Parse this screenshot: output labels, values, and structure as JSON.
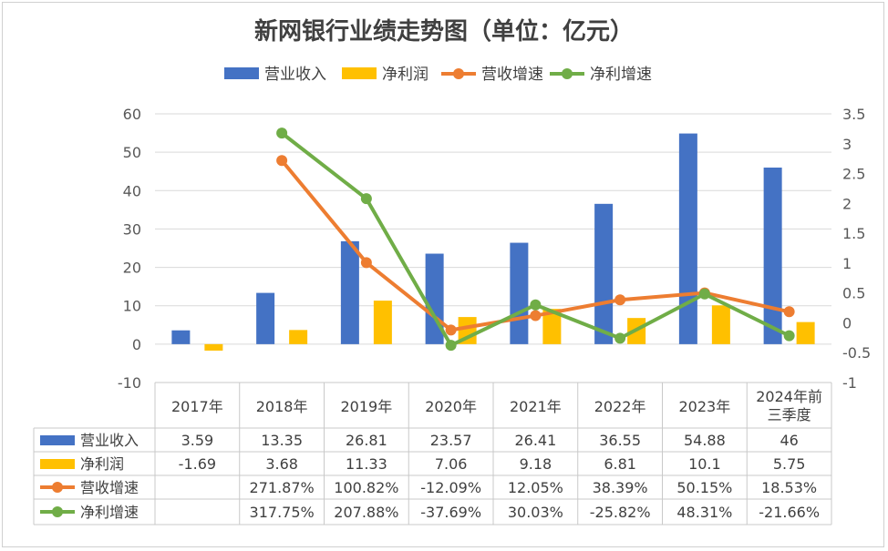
{
  "chart_data": {
    "type": "bar",
    "title": "新网银行业绩走势图（单位：亿元）",
    "categories": [
      "2017年",
      "2018年",
      "2019年",
      "2020年",
      "2021年",
      "2022年",
      "2023年",
      "2024年前三季度"
    ],
    "category_lines": [
      [
        "2017年"
      ],
      [
        "2018年"
      ],
      [
        "2019年"
      ],
      [
        "2020年"
      ],
      [
        "2021年"
      ],
      [
        "2022年"
      ],
      [
        "2023年"
      ],
      [
        "2024年前",
        "三季度"
      ]
    ],
    "y_left": {
      "ylim": [
        -10,
        60
      ],
      "ticks": [
        "-10",
        "0",
        "10",
        "20",
        "30",
        "40",
        "50",
        "60"
      ]
    },
    "y_right": {
      "ylim": [
        -1,
        3.5
      ],
      "ticks": [
        "-1",
        "-0.5",
        "0",
        "0.5",
        "1",
        "1.5",
        "2",
        "2.5",
        "3",
        "3.5"
      ]
    },
    "grid": true,
    "legend_position": "top",
    "series": [
      {
        "name": "营业收入",
        "kind": "bar",
        "axis": "left",
        "color": "#4472C4",
        "values": [
          3.59,
          13.35,
          26.81,
          23.57,
          26.41,
          36.55,
          54.88,
          46
        ],
        "labels": [
          "3.59",
          "13.35",
          "26.81",
          "23.57",
          "26.41",
          "36.55",
          "54.88",
          "46"
        ]
      },
      {
        "name": "净利润",
        "kind": "bar",
        "axis": "left",
        "color": "#FFC000",
        "values": [
          -1.69,
          3.68,
          11.33,
          7.06,
          9.18,
          6.81,
          10.1,
          5.75
        ],
        "labels": [
          "-1.69",
          "3.68",
          "11.33",
          "7.06",
          "9.18",
          "6.81",
          "10.1",
          "5.75"
        ]
      },
      {
        "name": "营收增速",
        "kind": "line",
        "axis": "right",
        "color": "#ED7D31",
        "values": [
          null,
          2.7187,
          1.0082,
          -0.1209,
          0.1205,
          0.3839,
          0.5015,
          0.1853
        ],
        "labels": [
          "",
          "271.87%",
          "100.82%",
          "-12.09%",
          "12.05%",
          "38.39%",
          "50.15%",
          "18.53%"
        ]
      },
      {
        "name": "净利增速",
        "kind": "line",
        "axis": "right",
        "color": "#70AD47",
        "values": [
          null,
          3.1775,
          2.0788,
          -0.3769,
          0.3003,
          -0.2582,
          0.4831,
          -0.2166
        ],
        "labels": [
          "",
          "317.75%",
          "207.88%",
          "-37.69%",
          "30.03%",
          "-25.82%",
          "48.31%",
          "-21.66%"
        ]
      }
    ]
  }
}
